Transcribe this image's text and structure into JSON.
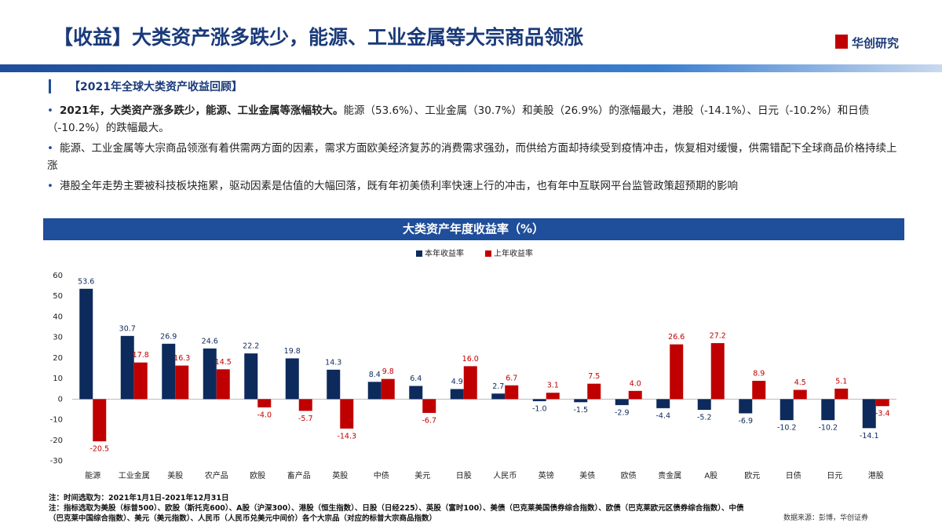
{
  "header": {
    "title": "【收益】大类资产涨多跌少，能源、工业金属等大宗商品领涨",
    "logo": "华创研究"
  },
  "section": {
    "title": "【2021年全球大类资产收益回顾】",
    "bullets": [
      {
        "bold": "2021年，大类资产涨多跌少，能源、工业金属等涨幅较大。",
        "text": "能源（53.6%）、工业金属（30.7%）和美股（26.9%）的涨幅最大，港股（-14.1%）、日元（-10.2%）和日债（-10.2%）的跌幅最大。"
      },
      {
        "bold": "",
        "text": "能源、工业金属等大宗商品领涨有着供需两方面的因素，需求方面欧美经济复苏的消费需求强劲，而供给方面却持续受到疫情冲击，恢复相对缓慢，供需错配下全球商品价格持续上涨"
      },
      {
        "bold": "",
        "text": "港股全年走势主要被科技板块拖累，驱动因素是估值的大幅回落，既有年初美债利率快速上行的冲击，也有年中互联网平台监管政策超预期的影响"
      }
    ]
  },
  "chart_data": {
    "type": "bar",
    "title": "大类资产年度收益率（%）",
    "categories": [
      "能源",
      "工业金属",
      "美股",
      "农产品",
      "欧股",
      "畜产品",
      "英股",
      "中债",
      "美元",
      "日股",
      "人民币",
      "英镑",
      "美债",
      "欧债",
      "贵金属",
      "A股",
      "欧元",
      "日债",
      "日元",
      "港股"
    ],
    "series": [
      {
        "name": "本年收益率",
        "color": "#0d2a5c",
        "values": [
          53.6,
          30.7,
          26.9,
          24.6,
          22.2,
          19.8,
          14.3,
          8.4,
          6.4,
          4.9,
          2.7,
          -1.0,
          -1.5,
          -2.9,
          -4.4,
          -5.2,
          -6.9,
          -10.2,
          -10.2,
          -14.1
        ],
        "value_labels": [
          "53.6",
          "30.7",
          "26.9",
          "24.6",
          "22.2",
          "19.8",
          "14.3",
          "8.4",
          "6.4",
          "4.9",
          "2.7",
          "-1.0",
          "-1.5",
          "-2.9",
          "-4.4",
          "-5.2",
          "-6.9",
          "-10.2",
          "-10.2",
          "-14.1"
        ]
      },
      {
        "name": "上年收益率",
        "color": "#c00000",
        "values": [
          -20.5,
          17.8,
          16.3,
          14.5,
          -4.0,
          -5.7,
          -14.3,
          9.8,
          -6.7,
          16.0,
          6.7,
          3.1,
          7.5,
          4.0,
          26.6,
          27.2,
          8.9,
          4.5,
          5.1,
          -3.4
        ],
        "value_labels": [
          "-20.5",
          "17.8",
          "16.3",
          "14.5",
          "-4.0",
          "-5.7",
          "-14.3",
          "9.8",
          "-6.7",
          "16.0",
          "6.7",
          "3.1",
          "7.5",
          "4.0",
          "26.6",
          "27.2",
          "8.9",
          "4.5",
          "5.1",
          "-3.4"
        ]
      }
    ],
    "ylim": [
      -30,
      60
    ],
    "yticks": [
      -30,
      -20,
      -10,
      0,
      10,
      20,
      30,
      40,
      50,
      60
    ],
    "grid": false,
    "legend": "top"
  },
  "notes": [
    "注：时间选取为：2021年1月1日-2021年12月31日",
    "注：指标选取为美股（标普500）、欧股（斯托克600）、A股（沪深300）、港股（恒生指数）、日股（日经225）、英股（富时100）、美债（巴克莱美国债券综合指数）、欧债（巴克莱欧元区债券综合指数）、中债（巴克莱中国综合指数）、美元（美元指数）、人民币（人民币兑美元中间价）各个大宗品（对应的标普大宗商品指数）"
  ],
  "source": "数据来源：彭博，华创证券"
}
